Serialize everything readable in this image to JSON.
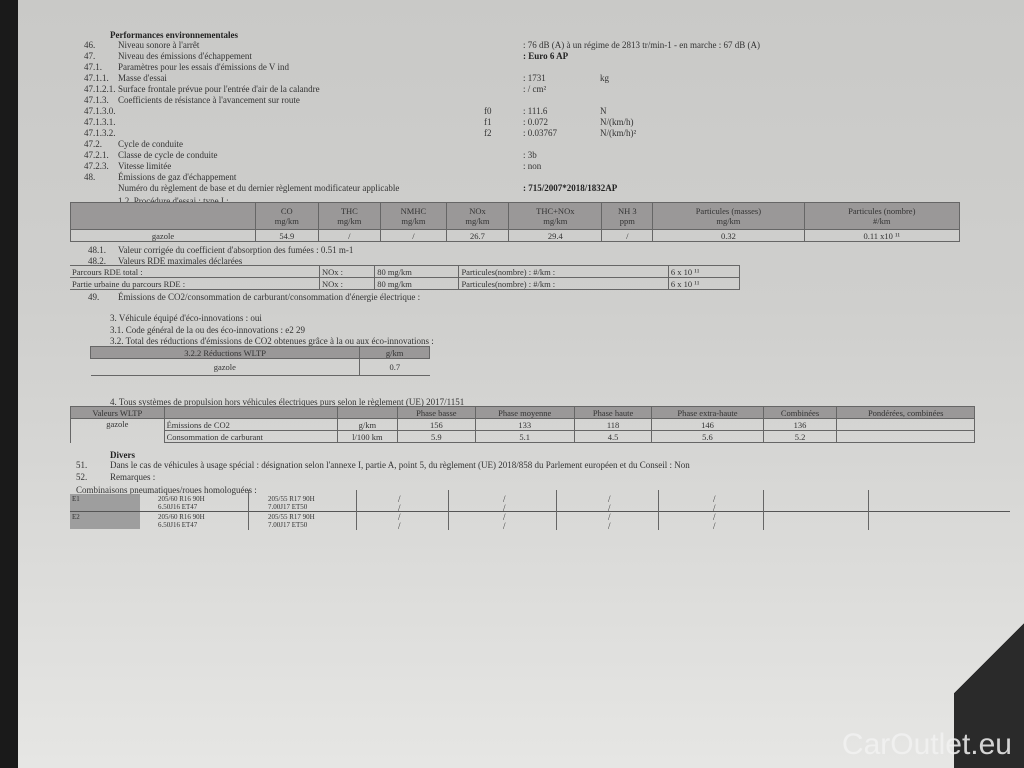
{
  "heading": "Performances environnementales",
  "rows": [
    {
      "num": "46.",
      "label": "Niveau sonore à l'arrêt",
      "value": ": 76 dB (A)   à un régime de 2813 tr/min-1 - en marche :   67 dB (A)"
    },
    {
      "num": "47.",
      "label": "Niveau des émissions d'échappement",
      "value": ": Euro 6 AP"
    },
    {
      "num": "47.1.",
      "label": "Paramètres pour les essais d'émissions de V ind",
      "value": ""
    },
    {
      "num": "47.1.1.",
      "label": "Masse d'essai",
      "value": ": 1731",
      "unit": "kg"
    },
    {
      "num": "47.1.2.1.",
      "label": "Surface frontale prévue pour l'entrée d'air de la calandre",
      "value": ": / cm²"
    },
    {
      "num": "47.1.3.",
      "label": "Coefficients de résistance à l'avancement sur route",
      "value": ""
    },
    {
      "num": "47.1.3.0.",
      "coef": "f0",
      "value": ": 111.6",
      "unit": "N"
    },
    {
      "num": "47.1.3.1.",
      "coef": "f1",
      "value": ": 0.072",
      "unit": "N/(km/h)"
    },
    {
      "num": "47.1.3.2.",
      "coef": "f2",
      "value": ": 0.03767",
      "unit": "N/(km/h)²"
    },
    {
      "num": "47.2.",
      "label": "Cycle de conduite",
      "value": ""
    },
    {
      "num": "47.2.1.",
      "label": "Classe de cycle de conduite",
      "value": ": 3b"
    },
    {
      "num": "47.2.3.",
      "label": "Vitesse limitée",
      "value": ": non"
    },
    {
      "num": "48.",
      "label": "Émissions de gaz d'échappement",
      "value": ""
    },
    {
      "num": "",
      "label": "Numéro du règlement de base et du dernier règlement modificateur applicable",
      "value": ": 715/2007*2018/1832AP"
    }
  ],
  "procedure": "1.2. Procédure d'essai : type I :",
  "type1": {
    "headers": [
      [
        "CO",
        "mg/km"
      ],
      [
        "THC",
        "mg/km"
      ],
      [
        "NMHC",
        "mg/km"
      ],
      [
        "NOx",
        "mg/km"
      ],
      [
        "THC+NOx",
        "mg/km"
      ],
      [
        "NH 3",
        "ppm"
      ],
      [
        "Particules (masses)",
        "mg/km"
      ],
      [
        "Particules (nombre)",
        "#/km"
      ]
    ],
    "fuel": "gazole",
    "values": [
      "54.9",
      "/",
      "/",
      "26.7",
      "29.4",
      "/",
      "0.32",
      "0.11 x10 ¹¹"
    ]
  },
  "r481": {
    "num": "48.1.",
    "label": "Valeur corrigée du coefficient d'absorption des fumées : 0.51 m-1"
  },
  "r482": {
    "num": "48.2.",
    "label": "Valeurs RDE maximales déclarées"
  },
  "rde": [
    [
      "Parcours RDE total :",
      "NOx :",
      "80 mg/km",
      "Particules(nombre) : #/km :",
      "6 x 10 ¹¹"
    ],
    [
      "Partie urbaine du parcours RDE     :",
      "NOx :",
      "80 mg/km",
      "Particules(nombre) : #/km :",
      "6 x 10 ¹¹"
    ]
  ],
  "r49": {
    "num": "49.",
    "label": "Émissions de CO2/consommation de carburant/consommation d'énergie électrique :"
  },
  "eco": [
    "3. Véhicule équipé d'éco-innovations : oui",
    "3.1. Code général de la ou des éco-innovations : e2 29",
    "3.2. Total des réductions d'émissions de CO2 obtenues grâce à la ou aux éco-innovations :"
  ],
  "ecoTable": {
    "h1": "3.2.2 Réductions WLTP",
    "h2": "g/km",
    "fuel": "gazole",
    "value": "0.7"
  },
  "wltpTitle": "4. Tous systèmes de propulsion hors véhicules électriques purs selon le règlement (UE) 2017/1151",
  "wltp": {
    "label": "Valeurs WLTP",
    "fuel": "gazole",
    "headers": [
      "Phase basse",
      "Phase moyenne",
      "Phase haute",
      "Phase extra-haute",
      "Combinées",
      "Pondérées, combinées"
    ],
    "rows": [
      {
        "name": "Émissions de CO2",
        "unit": "g/km",
        "values": [
          "156",
          "133",
          "118",
          "146",
          "136",
          ""
        ]
      },
      {
        "name": "Consommation de carburant",
        "unit": "l/100 km",
        "values": [
          "5.9",
          "5.1",
          "4.5",
          "5.6",
          "5.2",
          ""
        ]
      }
    ]
  },
  "divers": "Divers",
  "r51": {
    "num": "51.",
    "label": "Dans le cas de véhicules à usage spécial : désignation selon l'annexe I, partie A, point 5, du règlement (UE) 2018/858 du Parlement européen et du Conseil : Non"
  },
  "r52": {
    "num": "52.",
    "label": "Remarques :"
  },
  "tyresTitle": "Combinaisons pneumatiques/roues homologuées :",
  "tyres": [
    {
      "id": "E1",
      "a": "205/60 R16 90H",
      "a2": "6.50J16 ET47",
      "b": "205/55 R17 90H",
      "b2": "7.00J17 ET50"
    },
    {
      "id": "E2",
      "a": "205/60 R16 90H",
      "a2": "6.50J16 ET47",
      "b": "205/55 R17 90H",
      "b2": "7.00J17 ET50"
    }
  ],
  "slash": "/",
  "watermark": "CarOutlet.eu"
}
